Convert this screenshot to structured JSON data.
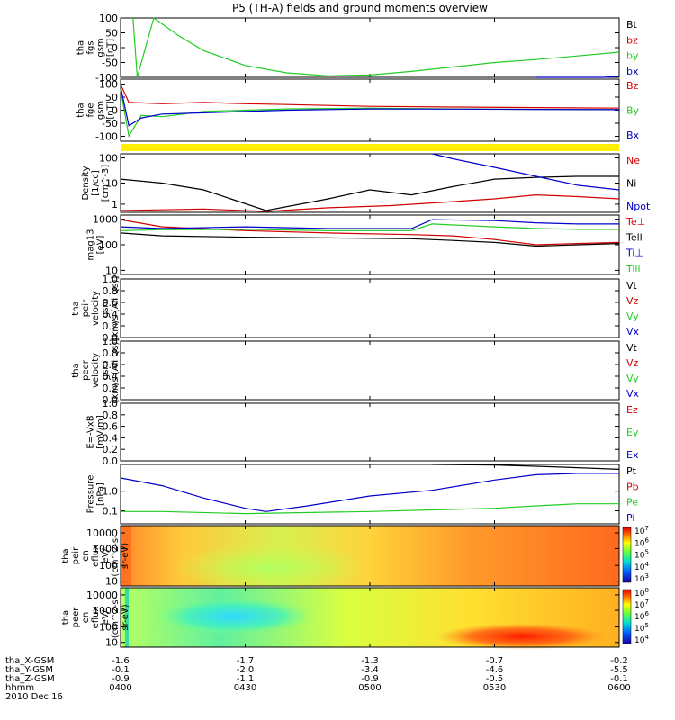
{
  "title": "P5 (TH-A) fields and ground moments overview",
  "colors": {
    "black": "#000000",
    "red": "#d40000",
    "green": "#22cc22",
    "blue": "#0000cc",
    "yellow": "#ffee00"
  },
  "panels": [
    {
      "id": "fgs",
      "ylabel": [
        "tha",
        "fgs",
        "gsm",
        "[nT]"
      ],
      "ticks": [
        "100",
        "50",
        "0",
        "-50",
        "-100"
      ],
      "legend": [
        {
          "text": "Bt",
          "color": "black"
        },
        {
          "text": "bz",
          "color": "red"
        },
        {
          "text": "by",
          "color": "green"
        },
        {
          "text": "bx",
          "color": "blue"
        }
      ]
    },
    {
      "id": "fge",
      "ylabel": [
        "tha",
        "fge",
        "gsm",
        "[nT]"
      ],
      "ticks": [
        "100",
        "50",
        "0",
        "-50",
        "-100"
      ],
      "legend": [
        {
          "text": "Bz",
          "color": "red"
        },
        {
          "text": "By",
          "color": "green"
        },
        {
          "text": "Bx",
          "color": "blue"
        }
      ]
    },
    {
      "id": "density",
      "ylabel": [
        "Density",
        "[1/cc]",
        "[cm^-3]"
      ],
      "ticks": [
        "100",
        "10",
        "1"
      ],
      "legend": [
        {
          "text": "Ne",
          "color": "red"
        },
        {
          "text": "Ni",
          "color": "black"
        },
        {
          "text": "Npot",
          "color": "blue"
        }
      ]
    },
    {
      "id": "temp",
      "ylabel": [
        "mag13",
        "[eV]"
      ],
      "ticks": [
        "1000",
        "100",
        "10"
      ],
      "legend": [
        {
          "text": "Te⊥",
          "color": "red"
        },
        {
          "text": "Tell",
          "color": "black"
        },
        {
          "text": "Ti⊥",
          "color": "blue"
        },
        {
          "text": "Till",
          "color": "green"
        }
      ]
    },
    {
      "id": "peir_vel",
      "ylabel": [
        "tha",
        "peir",
        "velocity",
        "gsm",
        "[km/s (All Qs)]"
      ],
      "ticks": [
        "1.0",
        "0.8",
        "0.6",
        "0.4",
        "0.2",
        "0.0"
      ],
      "legend": [
        {
          "text": "Vt",
          "color": "black"
        },
        {
          "text": "Vz",
          "color": "red"
        },
        {
          "text": "Vy",
          "color": "green"
        },
        {
          "text": "Vx",
          "color": "blue"
        }
      ]
    },
    {
      "id": "peer_vel",
      "ylabel": [
        "tha",
        "peer",
        "velocity",
        "gsm",
        "[km/s (All Qs)]"
      ],
      "ticks": [
        "1.0",
        "0.8",
        "0.6",
        "0.4",
        "0.2",
        "0.0"
      ],
      "legend": [
        {
          "text": "Vt",
          "color": "black"
        },
        {
          "text": "Vz",
          "color": "red"
        },
        {
          "text": "Vy",
          "color": "green"
        },
        {
          "text": "Vx",
          "color": "blue"
        }
      ]
    },
    {
      "id": "efield",
      "ylabel": [
        "E=-VxB",
        "[mV/m]"
      ],
      "ticks": [
        "1.0",
        "0.8",
        "0.6",
        "0.4",
        "0.2",
        "0.0"
      ],
      "legend": [
        {
          "text": "Ez",
          "color": "red"
        },
        {
          "text": "Ey",
          "color": "green"
        },
        {
          "text": "Ex",
          "color": "blue"
        }
      ]
    },
    {
      "id": "pressure",
      "ylabel": [
        "Pressure",
        "[nPa]"
      ],
      "ticks": [
        "1.0",
        "0.1"
      ],
      "legend": [
        {
          "text": "Pt",
          "color": "black"
        },
        {
          "text": "Pb",
          "color": "red"
        },
        {
          "text": "Pe",
          "color": "green"
        },
        {
          "text": "Pi",
          "color": "blue"
        }
      ]
    },
    {
      "id": "peir_spec",
      "ylabel": [
        "tha",
        "peir",
        "en",
        "eflux",
        "eV/",
        "(cm^2-s-",
        "sr-eV)"
      ],
      "ticks": [
        "10000",
        "1000",
        "100",
        "10"
      ],
      "colorbar": [
        "10^7",
        "10^6",
        "10^5",
        "10^4",
        "10^3"
      ]
    },
    {
      "id": "peer_spec",
      "ylabel": [
        "tha",
        "peer",
        "en",
        "eflux",
        "eV/",
        "(cm^2-s-",
        "sr-eV)"
      ],
      "ticks": [
        "10000",
        "1000",
        "100",
        "10"
      ],
      "colorbar": [
        "10^8",
        "10^7",
        "10^6",
        "10^5",
        "10^4"
      ]
    }
  ],
  "bottom_axis": {
    "rows": [
      {
        "label": "tha_X-GSM",
        "values": [
          "-1.6",
          "-1.7",
          "-1.3",
          "-0.7",
          "-0.2"
        ]
      },
      {
        "label": "tha_Y-GSM",
        "values": [
          "-0.1",
          "-2.0",
          "-3.4",
          "-4.6",
          "-5.5"
        ]
      },
      {
        "label": "tha_Z-GSM",
        "values": [
          "-0.9",
          "-1.1",
          "-0.9",
          "-0.5",
          "-0.1"
        ]
      },
      {
        "label": "hhmm",
        "values": [
          "0400",
          "0430",
          "0500",
          "0530",
          "0600"
        ]
      }
    ],
    "date": "2010 Dec 16"
  },
  "chart_data": {
    "type": "line",
    "title": "P5 (TH-A) fields and ground moments overview",
    "x_range": [
      "04:00",
      "06:00"
    ],
    "x_ticks": [
      "0400",
      "0430",
      "0500",
      "0530",
      "0600"
    ],
    "date": "2010 Dec 16",
    "panels": [
      {
        "id": "fgs",
        "ylim": [
          -100,
          100
        ],
        "scale": "linear",
        "ylabel": "tha fgs gsm [nT]",
        "series": [
          {
            "name": "by",
            "color": "green",
            "x": [
              3,
              4,
              8,
              14,
              20,
              30,
              40,
              50,
              60,
              70,
              80,
              90,
              100,
              110,
              120
            ],
            "y": [
              100,
              -100,
              100,
              40,
              -10,
              -60,
              -85,
              -95,
              -92,
              -80,
              -65,
              -50,
              -40,
              -28,
              -15
            ]
          },
          {
            "name": "bx",
            "color": "blue",
            "x": [
              100,
              110,
              116,
              120
            ],
            "y": [
              -100,
              -100,
              -100,
              -97
            ]
          }
        ]
      },
      {
        "id": "fge",
        "ylim": [
          -120,
          120
        ],
        "scale": "linear",
        "ylabel": "tha fge gsm [nT]",
        "series": [
          {
            "name": "Bz",
            "color": "red",
            "x": [
              0,
              2,
              5,
              10,
              20,
              30,
              40,
              60,
              80,
              100,
              120
            ],
            "y": [
              100,
              30,
              28,
              25,
              30,
              25,
              22,
              15,
              12,
              10,
              8
            ]
          },
          {
            "name": "By",
            "color": "green",
            "x": [
              0,
              2,
              5,
              10,
              20,
              30,
              40,
              60,
              80,
              100,
              120
            ],
            "y": [
              80,
              -100,
              -20,
              -25,
              -5,
              0,
              5,
              8,
              5,
              3,
              2
            ]
          },
          {
            "name": "Bx",
            "color": "blue",
            "x": [
              0,
              2,
              5,
              10,
              20,
              30,
              40,
              60,
              80,
              100,
              120
            ],
            "y": [
              90,
              -60,
              -30,
              -15,
              -10,
              -5,
              0,
              5,
              4,
              3,
              2
            ]
          }
        ]
      },
      {
        "id": "density",
        "ylim": [
          0.5,
          200
        ],
        "scale": "log",
        "ylabel": "Density [1/cc] [cm^-3]",
        "series": [
          {
            "name": "Ne",
            "color": "red",
            "x": [
              0,
              10,
              20,
              35,
              50,
              65,
              80,
              90,
              100,
              110,
              120
            ],
            "y": [
              0.6,
              0.65,
              0.7,
              0.55,
              0.8,
              1.0,
              1.5,
              2.0,
              3.0,
              2.5,
              2.0
            ]
          },
          {
            "name": "Ni",
            "color": "black",
            "x": [
              0,
              10,
              20,
              35,
              50,
              60,
              70,
              80,
              90,
              100,
              110,
              120
            ],
            "y": [
              15,
              10,
              5,
              0.6,
              2,
              5,
              3,
              7,
              15,
              18,
              20,
              20
            ]
          },
          {
            "name": "Npot",
            "color": "blue",
            "x": [
              75,
              80,
              90,
              100,
              110,
              120
            ],
            "y": [
              200,
              120,
              50,
              20,
              8,
              5
            ]
          }
        ]
      },
      {
        "id": "temp",
        "ylim": [
          10,
          1000
        ],
        "scale": "log",
        "ylabel": "mag13 [eV]",
        "series": [
          {
            "name": "Te⊥",
            "color": "red",
            "x": [
              0,
              10,
              30,
              50,
              70,
              80,
              90,
              100,
              110,
              120
            ],
            "y": [
              700,
              400,
              300,
              250,
              220,
              200,
              150,
              100,
              110,
              120
            ]
          },
          {
            "name": "Tell",
            "color": "black",
            "x": [
              0,
              10,
              30,
              50,
              70,
              80,
              90,
              100,
              110,
              120
            ],
            "y": [
              250,
              200,
              180,
              170,
              160,
              140,
              120,
              90,
              100,
              110
            ]
          },
          {
            "name": "Ti⊥",
            "color": "blue",
            "x": [
              0,
              10,
              30,
              50,
              70,
              75,
              90,
              100,
              110,
              120
            ],
            "y": [
              400,
              350,
              400,
              350,
              350,
              700,
              650,
              550,
              500,
              500
            ]
          },
          {
            "name": "Till",
            "color": "green",
            "x": [
              0,
              10,
              30,
              50,
              70,
              75,
              90,
              100,
              110,
              120
            ],
            "y": [
              300,
              320,
              330,
              300,
              300,
              500,
              400,
              350,
              330,
              330
            ]
          }
        ]
      },
      {
        "id": "peir_vel",
        "ylim": [
          0,
          1
        ],
        "scale": "linear",
        "series": []
      },
      {
        "id": "peer_vel",
        "ylim": [
          0,
          1
        ],
        "scale": "linear",
        "series": []
      },
      {
        "id": "efield",
        "ylim": [
          0,
          1
        ],
        "scale": "linear",
        "series": []
      },
      {
        "id": "pressure",
        "ylim": [
          0.01,
          2
        ],
        "scale": "log",
        "ylabel": "Pressure [nPa]",
        "series": [
          {
            "name": "Pt",
            "color": "black",
            "x": [
              75,
              90,
              100,
              110,
              120
            ],
            "y": [
              2,
              1.9,
              1.7,
              1.5,
              1.3
            ]
          },
          {
            "name": "Pi",
            "color": "blue",
            "x": [
              0,
              10,
              20,
              30,
              35,
              45,
              60,
              75,
              90,
              100,
              110,
              120
            ],
            "y": [
              0.6,
              0.3,
              0.1,
              0.04,
              0.03,
              0.05,
              0.12,
              0.2,
              0.5,
              0.8,
              0.9,
              0.9
            ]
          },
          {
            "name": "Pe",
            "color": "green",
            "x": [
              0,
              10,
              30,
              60,
              90,
              100,
              110,
              120
            ],
            "y": [
              0.03,
              0.03,
              0.025,
              0.03,
              0.04,
              0.05,
              0.06,
              0.06
            ]
          }
        ]
      },
      {
        "id": "peir_spec",
        "type": "heatmap",
        "ylim": [
          10,
          20000
        ],
        "scale": "log",
        "clim": [
          1000,
          10000000
        ]
      },
      {
        "id": "peer_spec",
        "type": "heatmap",
        "ylim": [
          10,
          20000
        ],
        "scale": "log",
        "clim": [
          10000,
          100000000
        ]
      }
    ]
  }
}
